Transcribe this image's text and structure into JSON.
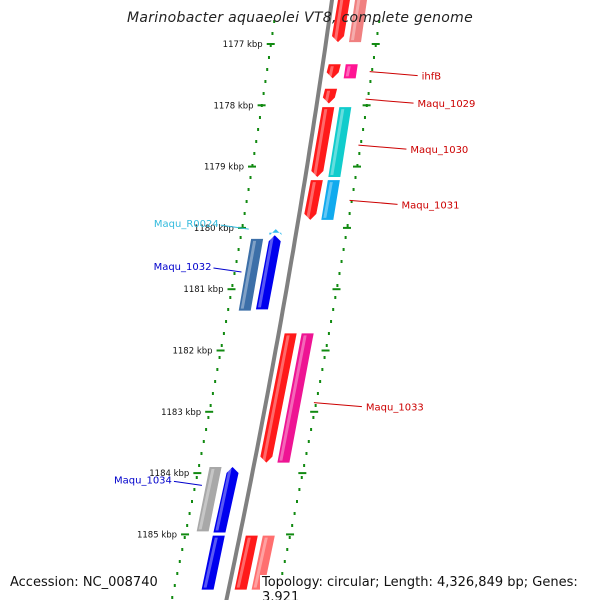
{
  "title": "Marinobacter aquaeolei VT8, complete genome",
  "footer": {
    "accession": "Accession: NC_008740",
    "summary": "Topology: circular; Length: 4,326,849 bp; Genes: 3,921"
  },
  "colors": {
    "backbone": "#808080",
    "tick": "#118a11",
    "label_red": "#cc0000",
    "label_blue": "#0000cc",
    "label_cyan": "#33bbdd"
  },
  "ticks": [
    {
      "label": "1177 kbp",
      "kbp": 1177
    },
    {
      "label": "1178 kbp",
      "kbp": 1178
    },
    {
      "label": "1179 kbp",
      "kbp": 1179
    },
    {
      "label": "1180 kbp",
      "kbp": 1180
    },
    {
      "label": "1181 kbp",
      "kbp": 1181
    },
    {
      "label": "1182 kbp",
      "kbp": 1182
    },
    {
      "label": "1183 kbp",
      "kbp": 1183
    },
    {
      "label": "1184 kbp",
      "kbp": 1184
    },
    {
      "label": "1185 kbp",
      "kbp": 1185
    }
  ],
  "features": [
    {
      "id": "f1",
      "strand": "+",
      "start": 1176.25,
      "end": 1176.97,
      "color": "#ff2020",
      "arrow": true
    },
    {
      "id": "f2",
      "strand": "-",
      "start": 1176.25,
      "end": 1176.97,
      "color": "#f08080",
      "arrow": false
    },
    {
      "id": "f3",
      "strand": "+",
      "start": 1177.33,
      "end": 1177.56,
      "color": "#ff1a1a",
      "arrow": true
    },
    {
      "id": "f4",
      "strand": "-",
      "start": 1177.33,
      "end": 1177.56,
      "color": "#ff1493",
      "arrow": false
    },
    {
      "id": "f5",
      "strand": "+",
      "start": 1177.73,
      "end": 1177.97,
      "color": "#ff1a1a",
      "arrow": true
    },
    {
      "id": "f6",
      "strand": "+",
      "start": 1178.03,
      "end": 1179.17,
      "color": "#ff1a1a",
      "arrow": true
    },
    {
      "id": "f7",
      "strand": "-",
      "start": 1178.03,
      "end": 1179.17,
      "color": "#11cccc",
      "arrow": false
    },
    {
      "id": "f8",
      "strand": "+",
      "start": 1179.22,
      "end": 1179.87,
      "color": "#ff1a1a",
      "arrow": true
    },
    {
      "id": "f9",
      "strand": "-",
      "start": 1179.22,
      "end": 1179.87,
      "color": "#11aaee",
      "arrow": false
    },
    {
      "id": "f10",
      "strand": "minus_out",
      "start": 1180.02,
      "end": 1180.08,
      "color": "#33bbee",
      "arrow": true
    },
    {
      "id": "f11",
      "strand": "minus_out",
      "start": 1180.12,
      "end": 1181.33,
      "color": "#0000ee",
      "arrow": true
    },
    {
      "id": "f12",
      "strand": "minus_in",
      "start": 1180.18,
      "end": 1181.35,
      "color": "#3c6fa8",
      "arrow": false
    },
    {
      "id": "f13",
      "strand": "+",
      "start": 1181.72,
      "end": 1183.83,
      "color": "#ff1a1a",
      "arrow": true
    },
    {
      "id": "f14",
      "strand": "-",
      "start": 1181.72,
      "end": 1183.83,
      "color": "#ee1493",
      "arrow": false
    },
    {
      "id": "f15",
      "strand": "minus_out",
      "start": 1183.9,
      "end": 1184.97,
      "color": "#0000ee",
      "arrow": true
    },
    {
      "id": "f16",
      "strand": "minus_in",
      "start": 1183.9,
      "end": 1184.95,
      "color": "#a8a8a8",
      "arrow": false
    },
    {
      "id": "f17",
      "strand": "+",
      "start": 1185.02,
      "end": 1185.9,
      "color": "#ff1a1a",
      "arrow": false
    },
    {
      "id": "f18",
      "strand": "-",
      "start": 1185.02,
      "end": 1185.9,
      "color": "#ff6f6f",
      "arrow": false
    },
    {
      "id": "f19",
      "strand": "minus_out",
      "start": 1185.02,
      "end": 1185.9,
      "color": "#0000ee",
      "arrow": false
    }
  ],
  "labels": [
    {
      "text": "ihfB",
      "color": "#cc0000",
      "side": "right",
      "kbp": 1177.45
    },
    {
      "text": "Maqu_1029",
      "color": "#cc0000",
      "side": "right",
      "kbp": 1177.9
    },
    {
      "text": "Maqu_1030",
      "color": "#cc0000",
      "side": "right",
      "kbp": 1178.65
    },
    {
      "text": "Maqu_1031",
      "color": "#cc0000",
      "side": "right",
      "kbp": 1179.55
    },
    {
      "text": "Maqu_R0024",
      "color": "#33bbdd",
      "side": "left",
      "kbp": 1180.02
    },
    {
      "text": "Maqu_1032",
      "color": "#0000cc",
      "side": "left",
      "kbp": 1180.72
    },
    {
      "text": "Maqu_1033",
      "color": "#cc0000",
      "side": "right",
      "kbp": 1182.85
    },
    {
      "text": "Maqu_1034",
      "color": "#0000cc",
      "side": "left",
      "kbp": 1184.2
    }
  ]
}
